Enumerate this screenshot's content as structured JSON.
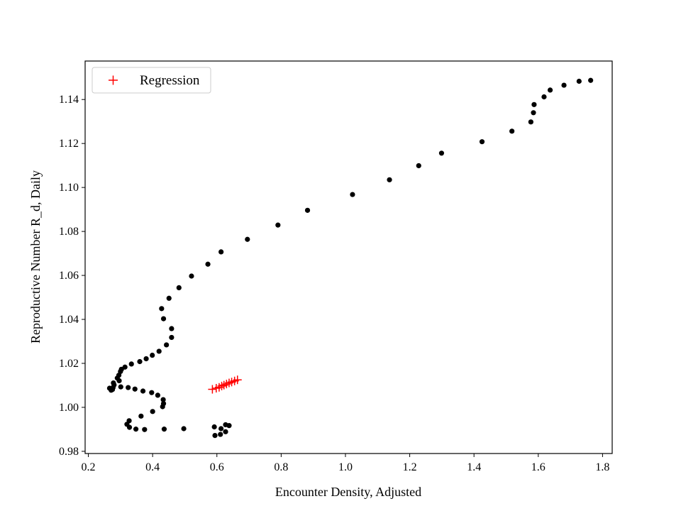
{
  "chart_data": {
    "type": "scatter",
    "title": "",
    "xlabel": "Encounter Density, Adjusted",
    "ylabel": "Reproductive Number R_d, Daily",
    "xlim": [
      0.19,
      1.83
    ],
    "ylim": [
      0.979,
      1.1575
    ],
    "x_ticks": [
      0.2,
      0.4,
      0.6,
      0.8,
      1.0,
      1.2,
      1.4,
      1.6,
      1.8
    ],
    "x_tick_labels": [
      "0.2",
      "0.4",
      "0.6",
      "0.8",
      "1.0",
      "1.2",
      "1.4",
      "1.6",
      "1.8"
    ],
    "y_ticks": [
      0.98,
      1.0,
      1.02,
      1.04,
      1.06,
      1.08,
      1.1,
      1.12,
      1.14
    ],
    "y_tick_labels": [
      "0.98",
      "1.00",
      "1.02",
      "1.04",
      "1.06",
      "1.08",
      "1.10",
      "1.12",
      "1.14"
    ],
    "grid": false,
    "legend_position": "top-left",
    "series": [
      {
        "name": "",
        "marker": "dot",
        "color": "#000000",
        "points": [
          [
            1.763,
            1.1487
          ],
          [
            1.727,
            1.1483
          ],
          [
            1.68,
            1.1465
          ],
          [
            1.637,
            1.1443
          ],
          [
            1.618,
            1.1412
          ],
          [
            1.587,
            1.1377
          ],
          [
            1.585,
            1.134
          ],
          [
            1.577,
            1.1298
          ],
          [
            1.518,
            1.1256
          ],
          [
            1.425,
            1.1208
          ],
          [
            1.299,
            1.1156
          ],
          [
            1.228,
            1.1099
          ],
          [
            1.137,
            1.1035
          ],
          [
            1.022,
            1.0968
          ],
          [
            0.882,
            1.0896
          ],
          [
            0.79,
            1.0829
          ],
          [
            0.695,
            1.0764
          ],
          [
            0.613,
            1.0707
          ],
          [
            0.572,
            1.0651
          ],
          [
            0.521,
            1.0597
          ],
          [
            0.482,
            1.0544
          ],
          [
            0.451,
            1.0496
          ],
          [
            0.428,
            1.0449
          ],
          [
            0.434,
            1.0403
          ],
          [
            0.459,
            1.0358
          ],
          [
            0.459,
            1.0318
          ],
          [
            0.443,
            1.0284
          ],
          [
            0.42,
            1.0255
          ],
          [
            0.399,
            1.0237
          ],
          [
            0.38,
            1.0221
          ],
          [
            0.36,
            1.0208
          ],
          [
            0.334,
            1.0197
          ],
          [
            0.314,
            1.0183
          ],
          [
            0.303,
            1.0173
          ],
          [
            0.3,
            1.0163
          ],
          [
            0.295,
            1.0146
          ],
          [
            0.29,
            1.0133
          ],
          [
            0.296,
            1.0121
          ],
          [
            0.278,
            1.0111
          ],
          [
            0.28,
            1.0102
          ],
          [
            0.277,
            1.009
          ],
          [
            0.275,
            1.0081
          ],
          [
            0.266,
            1.0087
          ],
          [
            0.271,
            1.0078
          ],
          [
            0.301,
            1.0093
          ],
          [
            0.324,
            1.009
          ],
          [
            0.345,
            1.0083
          ],
          [
            0.37,
            1.0074
          ],
          [
            0.397,
            1.0067
          ],
          [
            0.416,
            1.0055
          ],
          [
            0.433,
            1.0035
          ],
          [
            0.434,
            1.0017
          ],
          [
            0.431,
            1.0003
          ],
          [
            0.4,
            0.9981
          ],
          [
            0.364,
            0.996
          ],
          [
            0.327,
            0.9939
          ],
          [
            0.32,
            0.9923
          ],
          [
            0.328,
            0.9909
          ],
          [
            0.348,
            0.9901
          ],
          [
            0.375,
            0.9899
          ],
          [
            0.436,
            0.9901
          ],
          [
            0.497,
            0.9903
          ],
          [
            0.592,
            0.9911
          ],
          [
            0.613,
            0.9903
          ],
          [
            0.638,
            0.9917
          ],
          [
            0.627,
            0.9921
          ],
          [
            0.627,
            0.9889
          ],
          [
            0.611,
            0.9877
          ],
          [
            0.594,
            0.9872
          ]
        ]
      },
      {
        "name": "Regression",
        "marker": "plus",
        "color": "#ff0000",
        "points": [
          [
            0.586,
            1.0082
          ],
          [
            0.598,
            1.0087
          ],
          [
            0.607,
            1.0091
          ],
          [
            0.615,
            1.0097
          ],
          [
            0.622,
            1.0101
          ],
          [
            0.63,
            1.0106
          ],
          [
            0.638,
            1.0111
          ],
          [
            0.646,
            1.0115
          ],
          [
            0.655,
            1.012
          ],
          [
            0.664,
            1.0125
          ]
        ]
      }
    ]
  }
}
